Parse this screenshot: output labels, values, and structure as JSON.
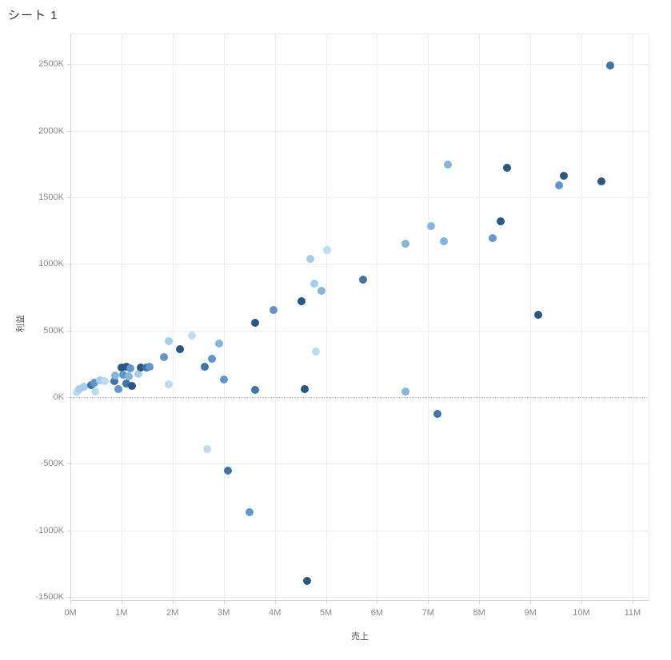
{
  "sheet": {
    "title": "シート 1"
  },
  "chart_data": {
    "type": "scatter",
    "title": "シート 1",
    "xlabel": "売上",
    "ylabel": "利益",
    "x_unit": "millions (M)",
    "y_unit": "thousands (K)",
    "xlim": [
      0,
      11.33
    ],
    "ylim": [
      -1530,
      2730
    ],
    "grid": true,
    "zero_line": "dotted",
    "x_ticks": [
      {
        "v": 0,
        "label": "0M"
      },
      {
        "v": 1,
        "label": "1M"
      },
      {
        "v": 2,
        "label": "2M"
      },
      {
        "v": 3,
        "label": "3M"
      },
      {
        "v": 4,
        "label": "4M"
      },
      {
        "v": 5,
        "label": "5M"
      },
      {
        "v": 6,
        "label": "6M"
      },
      {
        "v": 7,
        "label": "7M"
      },
      {
        "v": 8,
        "label": "8M"
      },
      {
        "v": 9,
        "label": "9M"
      },
      {
        "v": 10,
        "label": "10M"
      },
      {
        "v": 11,
        "label": "11M"
      }
    ],
    "y_ticks": [
      {
        "v": -1500,
        "label": "-1500K"
      },
      {
        "v": -1000,
        "label": "-1000K"
      },
      {
        "v": -500,
        "label": "-500K"
      },
      {
        "v": 0,
        "label": "0K"
      },
      {
        "v": 500,
        "label": "500K"
      },
      {
        "v": 1000,
        "label": "1000K"
      },
      {
        "v": 1500,
        "label": "1500K"
      },
      {
        "v": 2000,
        "label": "2000K"
      },
      {
        "v": 2500,
        "label": "2500K"
      }
    ],
    "palette": {
      "c1": "#bcdcf0",
      "c2": "#a3cde9",
      "c3": "#85b5dc",
      "c4": "#6096c8",
      "c5": "#3e74a8",
      "c6": "#2a5783"
    },
    "points": [
      {
        "x": 0.13,
        "y": 35,
        "c": "c1"
      },
      {
        "x": 0.17,
        "y": 61,
        "c": "c2"
      },
      {
        "x": 0.27,
        "y": 81,
        "c": "c2"
      },
      {
        "x": 0.4,
        "y": 89,
        "c": "c5"
      },
      {
        "x": 0.47,
        "y": 109,
        "c": "c4"
      },
      {
        "x": 0.48,
        "y": 40,
        "c": "c1"
      },
      {
        "x": 0.58,
        "y": 129,
        "c": "c2"
      },
      {
        "x": 0.67,
        "y": 121,
        "c": "c1"
      },
      {
        "x": 0.86,
        "y": 119,
        "c": "c5"
      },
      {
        "x": 0.87,
        "y": 165,
        "c": "c3"
      },
      {
        "x": 0.94,
        "y": 59,
        "c": "c4"
      },
      {
        "x": 1.0,
        "y": 221,
        "c": "c6"
      },
      {
        "x": 1.04,
        "y": 169,
        "c": "c4"
      },
      {
        "x": 1.09,
        "y": 226,
        "c": "c6"
      },
      {
        "x": 1.1,
        "y": 105,
        "c": "c5"
      },
      {
        "x": 1.14,
        "y": 155,
        "c": "c3"
      },
      {
        "x": 1.18,
        "y": 217,
        "c": "c4"
      },
      {
        "x": 1.21,
        "y": 85,
        "c": "c6"
      },
      {
        "x": 1.33,
        "y": 175,
        "c": "c2"
      },
      {
        "x": 1.38,
        "y": 225,
        "c": "c6"
      },
      {
        "x": 1.48,
        "y": 221,
        "c": "c5"
      },
      {
        "x": 1.55,
        "y": 231,
        "c": "c4"
      },
      {
        "x": 1.83,
        "y": 303,
        "c": "c4"
      },
      {
        "x": 1.92,
        "y": 423,
        "c": "c2"
      },
      {
        "x": 1.92,
        "y": 99,
        "c": "c1"
      },
      {
        "x": 2.14,
        "y": 362,
        "c": "c6"
      },
      {
        "x": 2.38,
        "y": 465,
        "c": "c1"
      },
      {
        "x": 2.63,
        "y": 226,
        "c": "c5"
      },
      {
        "x": 2.77,
        "y": 291,
        "c": "c4"
      },
      {
        "x": 2.91,
        "y": 405,
        "c": "c3"
      },
      {
        "x": 3.0,
        "y": 135,
        "c": "c4"
      },
      {
        "x": 3.61,
        "y": 561,
        "c": "c6"
      },
      {
        "x": 3.61,
        "y": 57,
        "c": "c5"
      },
      {
        "x": 3.97,
        "y": 657,
        "c": "c4"
      },
      {
        "x": 4.53,
        "y": 723,
        "c": "c6"
      },
      {
        "x": 4.59,
        "y": 60,
        "c": "c6"
      },
      {
        "x": 4.7,
        "y": 1040,
        "c": "c2"
      },
      {
        "x": 4.77,
        "y": 855,
        "c": "c2"
      },
      {
        "x": 4.81,
        "y": 345,
        "c": "c1"
      },
      {
        "x": 4.91,
        "y": 801,
        "c": "c3"
      },
      {
        "x": 5.02,
        "y": 1105,
        "c": "c1"
      },
      {
        "x": 5.72,
        "y": 885,
        "c": "c5"
      },
      {
        "x": 6.55,
        "y": 1155,
        "c": "c3"
      },
      {
        "x": 6.56,
        "y": 45,
        "c": "c3"
      },
      {
        "x": 7.06,
        "y": 1287,
        "c": "c3"
      },
      {
        "x": 7.19,
        "y": -123,
        "c": "c5"
      },
      {
        "x": 7.31,
        "y": 1173,
        "c": "c3"
      },
      {
        "x": 7.39,
        "y": 1744,
        "c": "c3"
      },
      {
        "x": 8.27,
        "y": 1197,
        "c": "c4"
      },
      {
        "x": 8.42,
        "y": 1323,
        "c": "c6"
      },
      {
        "x": 8.55,
        "y": 1720,
        "c": "c6"
      },
      {
        "x": 9.16,
        "y": 621,
        "c": "c6"
      },
      {
        "x": 9.56,
        "y": 1588,
        "c": "c4"
      },
      {
        "x": 9.66,
        "y": 1660,
        "c": "c6"
      },
      {
        "x": 10.39,
        "y": 1623,
        "c": "c6"
      },
      {
        "x": 10.56,
        "y": 2488,
        "c": "c5"
      },
      {
        "x": 2.67,
        "y": -387,
        "c": "c1"
      },
      {
        "x": 3.08,
        "y": -549,
        "c": "c5"
      },
      {
        "x": 3.5,
        "y": -862,
        "c": "c4"
      },
      {
        "x": 4.63,
        "y": -1377,
        "c": "c6"
      }
    ]
  }
}
